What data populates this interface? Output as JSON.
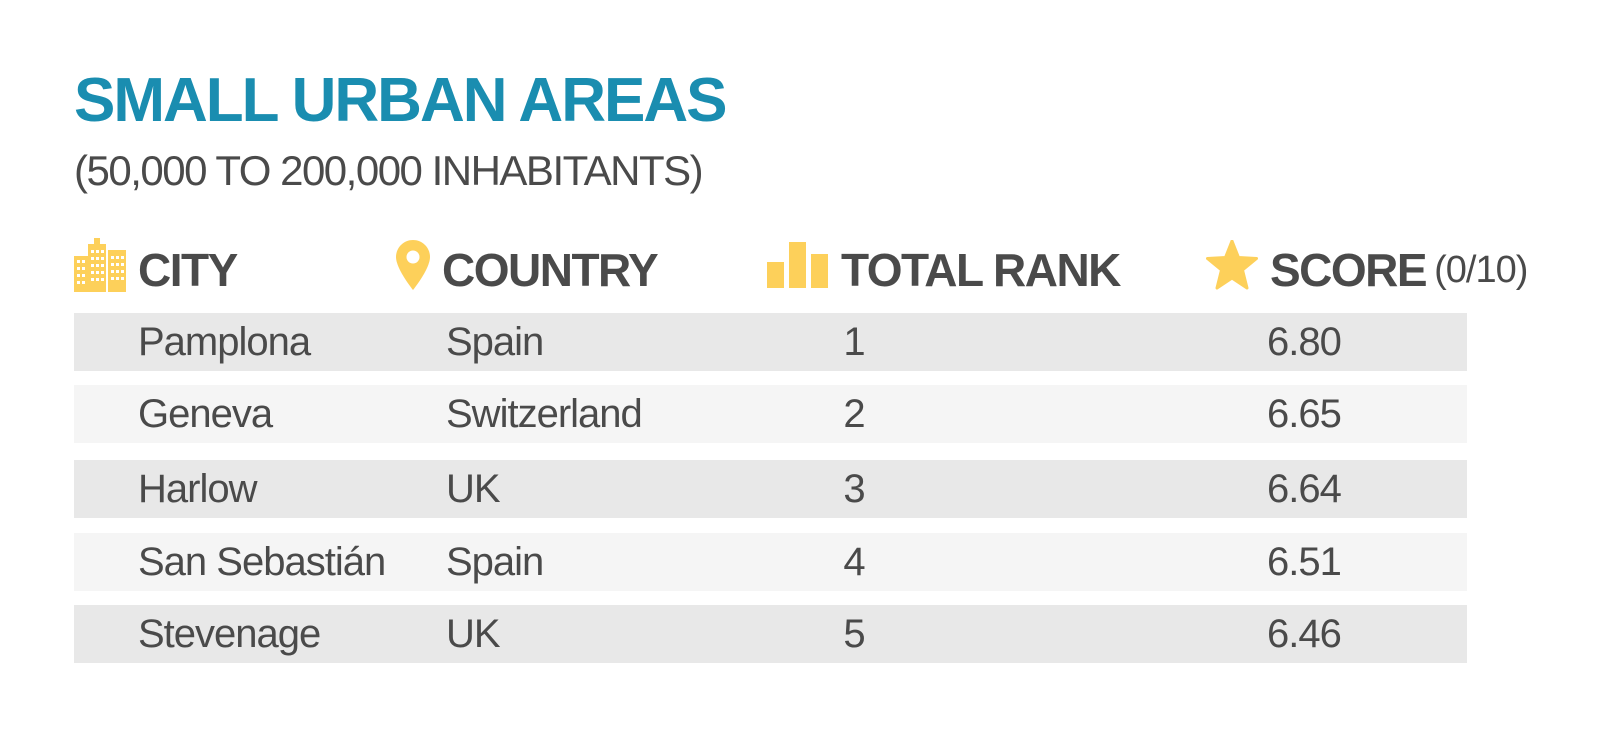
{
  "title": "SMALL URBAN AREAS",
  "subtitle": "(50,000 TO 200,000 INHABITANTS)",
  "colors": {
    "title": "#1a8db0",
    "text": "#4a4a4a",
    "icon": "#fdd05a",
    "row_dark": "#e8e8e8",
    "row_light": "#f5f5f5"
  },
  "columns": [
    {
      "label": "CITY",
      "suffix": "",
      "icon": "buildings-icon"
    },
    {
      "label": "COUNTRY",
      "suffix": "",
      "icon": "location-pin-icon"
    },
    {
      "label": "TOTAL RANK",
      "suffix": "",
      "icon": "bar-chart-icon"
    },
    {
      "label": "SCORE",
      "suffix": "(0/10)",
      "icon": "star-icon"
    }
  ],
  "chart_data": {
    "type": "table",
    "title": "SMALL URBAN AREAS",
    "subtitle": "(50,000 TO 200,000 INHABITANTS)",
    "headers": [
      "CITY",
      "COUNTRY",
      "TOTAL RANK",
      "SCORE (0/10)"
    ],
    "rows": [
      {
        "city": "Pamplona",
        "country": "Spain",
        "rank": "1",
        "score": "6.80"
      },
      {
        "city": "Geneva",
        "country": "Switzerland",
        "rank": "2",
        "score": "6.65"
      },
      {
        "city": "Harlow",
        "country": "UK",
        "rank": "3",
        "score": "6.64"
      },
      {
        "city": "San Sebastián",
        "country": "Spain",
        "rank": "4",
        "score": "6.51"
      },
      {
        "city": "Stevenage",
        "country": "UK",
        "rank": "5",
        "score": "6.46"
      }
    ]
  }
}
